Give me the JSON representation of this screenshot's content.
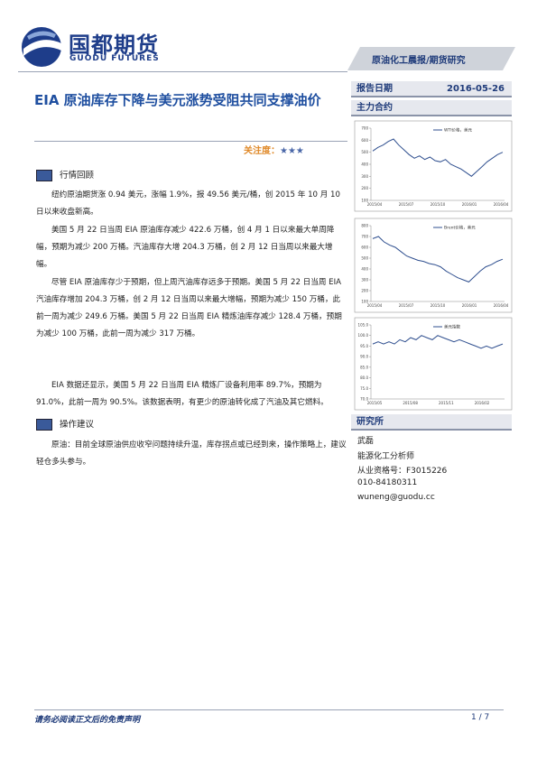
{
  "header": {
    "logo_cn": "国都期货",
    "logo_en": "GUODU FUTURES",
    "banner": "原油化工晨报/期货研究"
  },
  "title": "EIA 原油库存下降与美元涨势受阻共同支撑油价",
  "attention": {
    "label": "关注度：",
    "stars": "★★★"
  },
  "report_date": {
    "label": "报告日期",
    "value": "2016-05-26"
  },
  "main_contract": "主力合约",
  "sections": [
    {
      "heading": "行情回顾",
      "paragraphs": [
        "纽约原油期货涨 0.94 美元，涨幅 1.9%，报 49.56 美元/桶，创 2015 年 10 月 10 日以来收盘新高。",
        "美国 5 月 22 日当周 EIA 原油库存减少 422.6 万桶，创 4 月 1 日以来最大单周降幅，预期为减少 200 万桶。汽油库存大增 204.3 万桶，创 2 月 12 日当周以来最大增幅。",
        "尽管 EIA 原油库存少于预期，但上周汽油库存远多于预期。美国 5 月 22 日当周 EIA 汽油库存增加 204.3 万桶，创 2 月 12 日当周以来最大增幅，预期为减少 150 万桶，此前一周为减少 249.6 万桶。美国 5 月 22 日当周 EIA 精炼油库存减少 128.4 万桶，预期为减少 100 万桶，此前一周为减少 317 万桶。",
        "EIA 数据还显示，美国 5 月 22 日当周 EIA 精炼厂设备利用率 89.7%，预期为 91.0%，此前一周为 90.5%。该数据表明，有更少的原油转化成了汽油及其它燃料。"
      ]
    },
    {
      "heading": "操作建议",
      "paragraphs": [
        "原油：目前全球原油供应收窄问题持续升温，库存拐点或已经到来，操作策略上，建议轻仓多头参与。"
      ]
    }
  ],
  "charts": [
    {
      "type": "line",
      "legend": "WTI价格，美元",
      "color": "#2f4f8f",
      "ylim": [
        100,
        700
      ],
      "yticks": [
        100,
        200,
        300,
        400,
        500,
        600,
        700
      ],
      "xtick_labels": [
        "2015/04",
        "2015/07",
        "2015/10",
        "2016/01",
        "2016/04"
      ],
      "values": [
        510,
        540,
        560,
        590,
        610,
        560,
        520,
        480,
        450,
        470,
        440,
        460,
        430,
        420,
        440,
        400,
        380,
        360,
        330,
        300,
        340,
        380,
        420,
        450,
        480,
        500
      ]
    },
    {
      "type": "line",
      "legend": "Brent价格，美元",
      "color": "#2f4f8f",
      "ylim": [
        100,
        800
      ],
      "yticks": [
        100,
        200,
        300,
        400,
        500,
        600,
        700,
        800
      ],
      "xtick_labels": [
        "2015/04",
        "2015/07",
        "2015/10",
        "2016/01",
        "2016/04"
      ],
      "values": [
        680,
        700,
        650,
        620,
        600,
        560,
        520,
        500,
        480,
        470,
        450,
        440,
        420,
        380,
        350,
        320,
        300,
        280,
        330,
        380,
        420,
        440,
        470,
        490
      ]
    },
    {
      "type": "line",
      "legend": "美元指数",
      "color": "#2f4f8f",
      "ylim": [
        70,
        105
      ],
      "yticks": [
        {
          "value": 70,
          "label": "70.0"
        },
        {
          "value": 75,
          "label": "75.0"
        },
        {
          "value": 80,
          "label": "80.0"
        },
        {
          "value": 85,
          "label": "85.0"
        },
        {
          "value": 90,
          "label": "90.0"
        },
        {
          "value": 95,
          "label": "95.0"
        },
        {
          "value": 100,
          "label": "100.0"
        },
        {
          "value": 105,
          "label": "105.0"
        }
      ],
      "xtick_labels": [
        "2015/05",
        "2015/08",
        "2015/11",
        "2016/02"
      ],
      "values": [
        96,
        97,
        96,
        97,
        96,
        98,
        97,
        99,
        98,
        100,
        99,
        98,
        100,
        99,
        98,
        97,
        98,
        97,
        96,
        95,
        94,
        95,
        94,
        95,
        96
      ]
    }
  ],
  "research": {
    "heading": "研究所",
    "lines": [
      "武磊",
      "能源化工分析师",
      "从业资格号：F3015226",
      "010-84180311",
      "wuneng@guodu.cc"
    ]
  },
  "footer": {
    "disclaimer": "请务必阅读正文后的免责声明",
    "page": "1 / 7"
  }
}
